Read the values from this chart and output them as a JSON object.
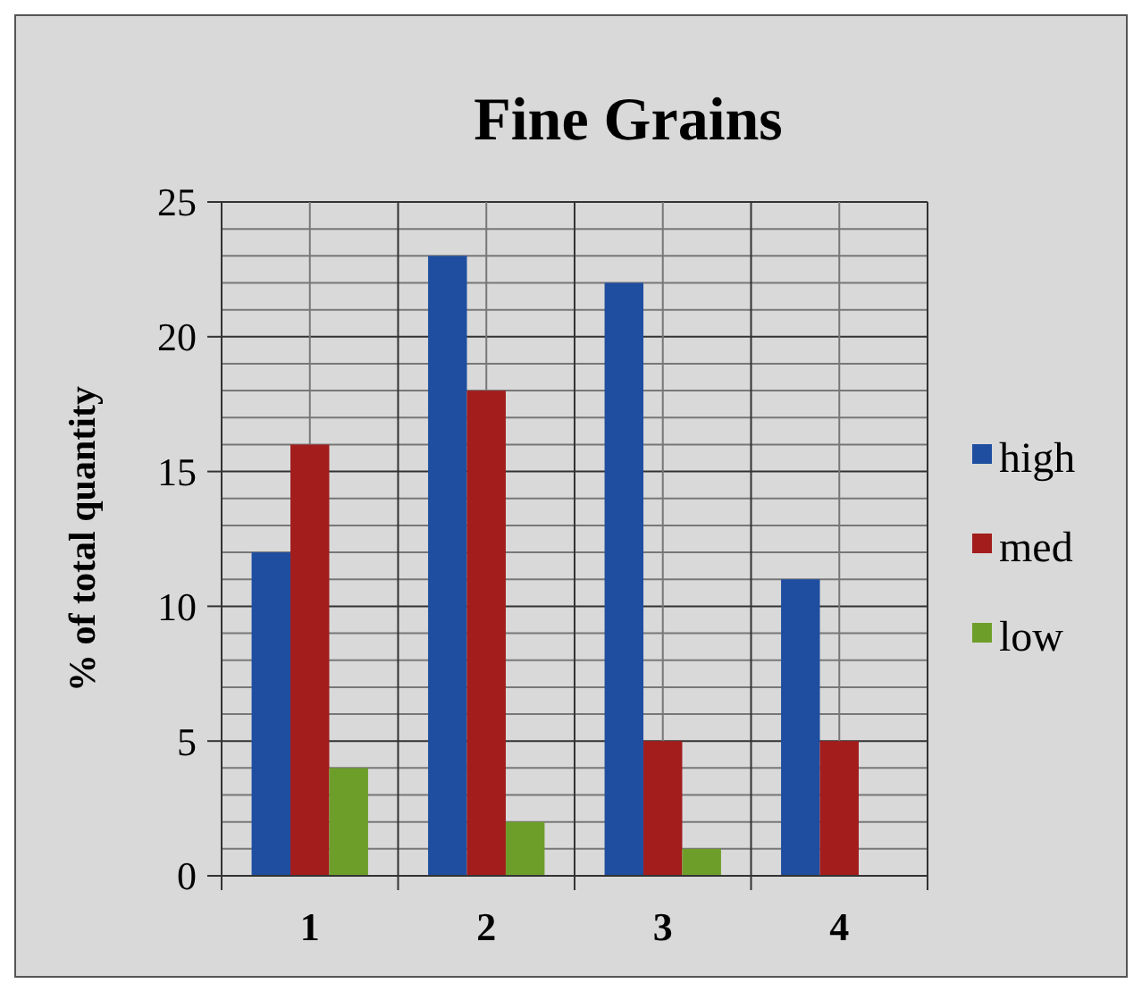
{
  "chart_data": {
    "type": "bar",
    "title": "Fine Grains",
    "ylabel": "% of total quantity",
    "categories": [
      "1",
      "2",
      "3",
      "4"
    ],
    "series": [
      {
        "name": "high",
        "color": "#1f4ea0",
        "values": [
          12,
          23,
          22,
          11
        ]
      },
      {
        "name": "med",
        "color": "#a31d1d",
        "values": [
          16,
          18,
          5,
          5
        ]
      },
      {
        "name": "low",
        "color": "#6e9e2a",
        "values": [
          4,
          2,
          1,
          0
        ]
      }
    ],
    "ylim": [
      0,
      25
    ],
    "yticks": [
      0,
      {
        "value": 1,
        "label": null
      },
      {
        "value": 2,
        "label": null
      },
      {
        "value": 3,
        "label": null
      },
      {
        "value": 4,
        "label": null
      },
      5,
      {
        "value": 6,
        "label": null
      },
      {
        "value": 7,
        "label": null
      },
      {
        "value": 8,
        "label": null
      },
      {
        "value": 9,
        "label": null
      },
      10,
      {
        "value": 11,
        "label": null
      },
      {
        "value": 12,
        "label": null
      },
      {
        "value": 13,
        "label": null
      },
      {
        "value": 14,
        "label": null
      },
      15,
      {
        "value": 16,
        "label": null
      },
      {
        "value": 17,
        "label": null
      },
      {
        "value": 18,
        "label": null
      },
      {
        "value": 19,
        "label": null
      },
      20,
      {
        "value": 21,
        "label": null
      },
      {
        "value": 22,
        "label": null
      },
      {
        "value": 23,
        "label": null
      },
      {
        "value": 24,
        "label": null
      },
      25
    ],
    "grid": true,
    "legend": "right"
  }
}
